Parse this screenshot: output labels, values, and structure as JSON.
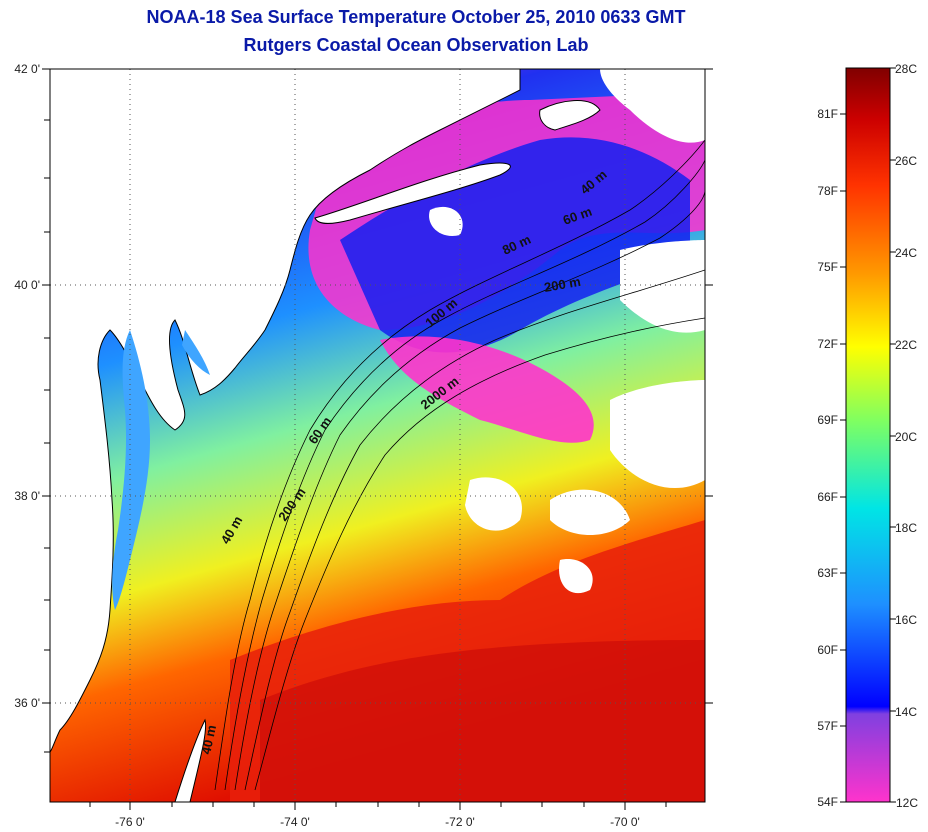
{
  "title": {
    "line1": "NOAA-18 Sea Surface Temperature October 25, 2010 0633 GMT",
    "line2": "Rutgers Coastal Ocean Observation Lab"
  },
  "map": {
    "lat_ticks": [
      "42 0'",
      "40 0'",
      "38 0'",
      "36 0'"
    ],
    "lon_ticks": [
      "-76 0'",
      "-74 0'",
      "-72 0'",
      "-70 0'"
    ],
    "contour_labels": [
      "40 m",
      "60 m",
      "80 m",
      "200 m",
      "100 m",
      "2000 m",
      "60 m",
      "200 m",
      "40 m",
      "40 m"
    ]
  },
  "colorbar": {
    "celsius": [
      "28C",
      "26C",
      "24C",
      "22C",
      "20C",
      "18C",
      "16C",
      "14C",
      "12C"
    ],
    "fahrenheit": [
      "81F",
      "78F",
      "75F",
      "72F",
      "69F",
      "66F",
      "63F",
      "60F",
      "57F",
      "54F"
    ],
    "colors": [
      "#ff33cc",
      "#8040e0",
      "#0000ff",
      "#1e90ff",
      "#00e5e5",
      "#80ff60",
      "#ffff00",
      "#ff9900",
      "#ff3300",
      "#cc0000",
      "#800000"
    ]
  }
}
